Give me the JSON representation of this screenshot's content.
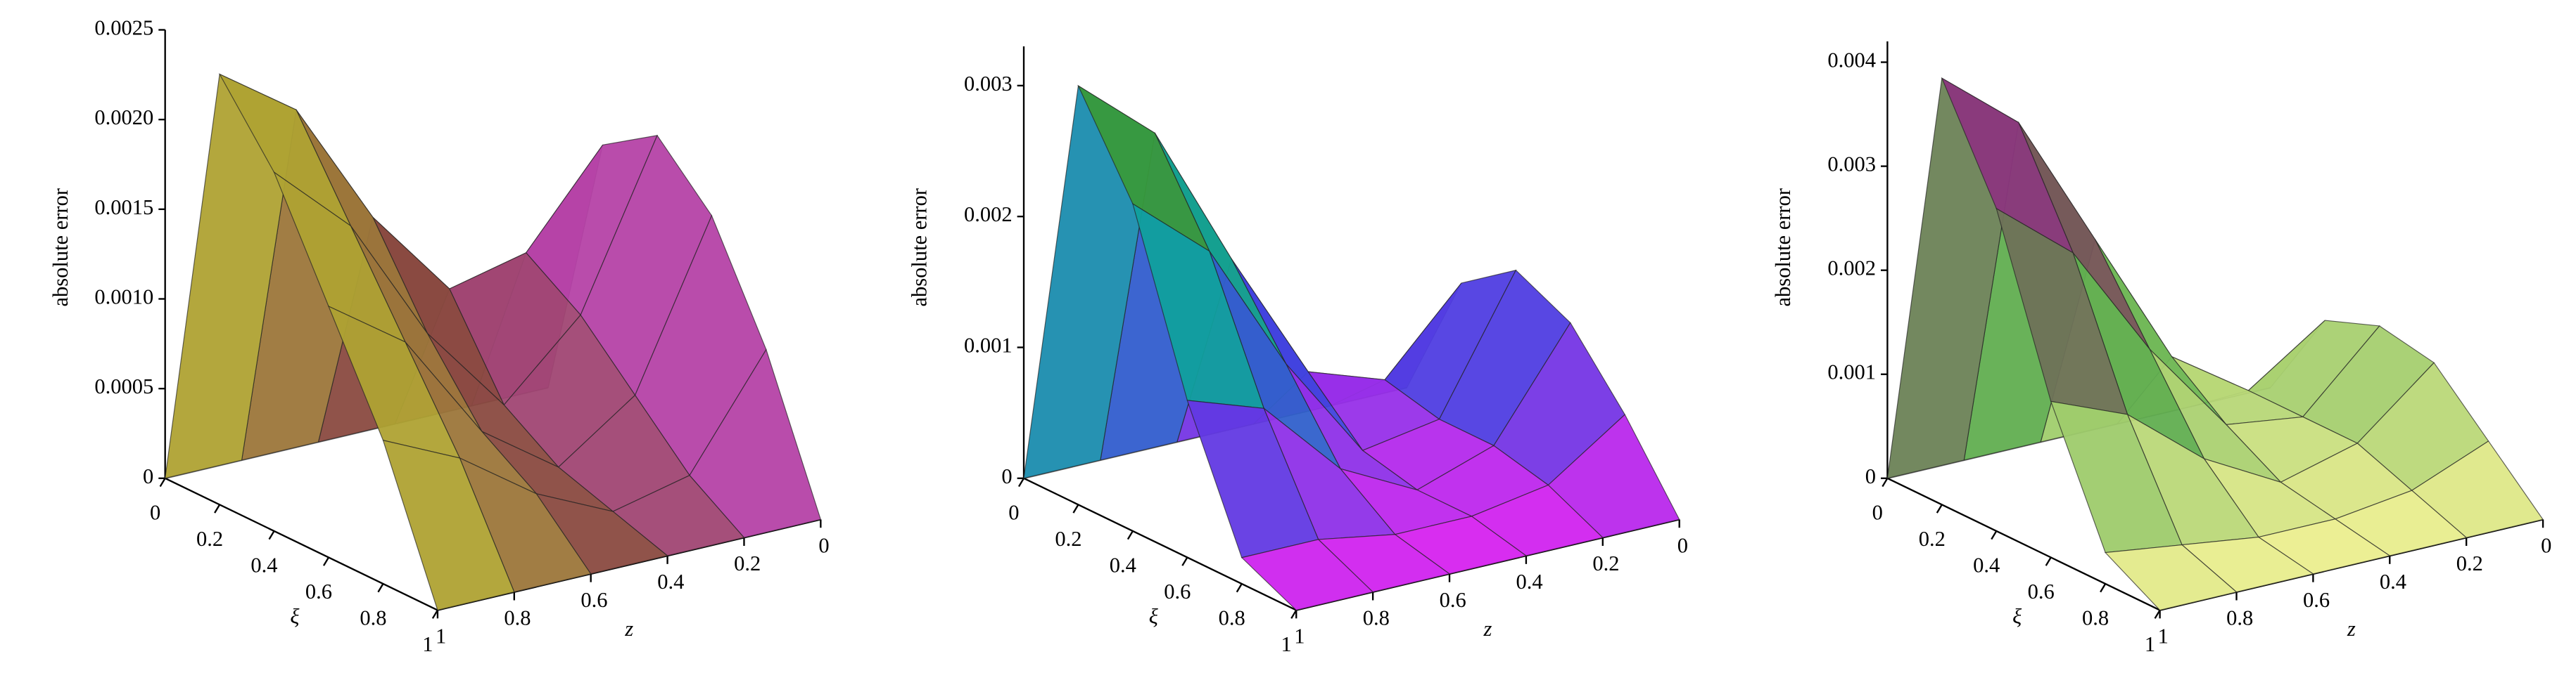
{
  "chart_data": [
    {
      "type": "surface",
      "ylabel": "absolute error",
      "xlabel": "ξ",
      "zlabel": "z",
      "xi": [
        0,
        0.2,
        0.4,
        0.6,
        0.8,
        1
      ],
      "z": [
        0,
        0.2,
        0.4,
        0.6,
        0.8,
        1
      ],
      "values": [
        [
          0,
          0,
          0,
          0,
          0,
          0
        ],
        [
          0.0015,
          0.001,
          0.0009,
          0.0014,
          0.0021,
          0.0024
        ],
        [
          0.0017,
          0.0008,
          0.0004,
          0.0009,
          0.0016,
          0.002
        ],
        [
          0.0014,
          0.0005,
          0.0002,
          0.0005,
          0.0011,
          0.0014
        ],
        [
          0.0008,
          0.0002,
          0.0001,
          0.0003,
          0.0006,
          0.0008
        ],
        [
          0,
          0,
          0,
          0,
          0,
          0
        ]
      ],
      "ylim": [
        0,
        0.0025
      ],
      "yticks": [
        0,
        0.0005,
        {
          "value": 0.001,
          "label": "0.0010"
        },
        0.0015,
        {
          "value": 0.002,
          "label": "0.0020"
        },
        0.0025
      ],
      "xticks": [
        0,
        0.2,
        0.4,
        0.6,
        0.8,
        1
      ],
      "zticks": [
        0,
        0.2,
        0.4,
        0.6,
        0.8,
        1
      ],
      "color_by": "z",
      "colormap": [
        "#c040c0",
        "#8a4a40",
        "#b8b830"
      ]
    },
    {
      "type": "surface",
      "ylabel": "absolute error",
      "xlabel": "ξ",
      "zlabel": "z",
      "xi": [
        0,
        0.2,
        0.4,
        0.6,
        0.8,
        1
      ],
      "z": [
        0,
        0.2,
        0.4,
        0.6,
        0.8,
        1
      ],
      "values": [
        [
          0,
          0,
          0,
          0,
          0,
          0
        ],
        [
          0.001,
          0.0004,
          0.0006,
          0.0016,
          0.0027,
          0.0032
        ],
        [
          0.0013,
          0.0003,
          0.0002,
          0.001,
          0.002,
          0.0025
        ],
        [
          0.0011,
          0.0003,
          0.0001,
          0.0004,
          0.001,
          0.0012
        ],
        [
          0.0006,
          0.0002,
          0.0001,
          0.0001,
          0.0002,
          0.0002
        ],
        [
          0,
          0,
          0,
          0,
          0,
          0
        ]
      ],
      "ylim": [
        0,
        0.0033
      ],
      "yticks": [
        0,
        0.001,
        0.002,
        0.003
      ],
      "xticks": [
        0,
        0.2,
        0.4,
        0.6,
        0.8,
        1
      ],
      "zticks": [
        0,
        0.2,
        0.4,
        0.6,
        0.8,
        1
      ],
      "color_by": "height",
      "colormap": [
        "#e020f0",
        "#4040e0",
        "#10a0a0",
        "#20b040",
        "#c02020"
      ]
    },
    {
      "type": "surface",
      "ylabel": "absolute error",
      "xlabel": "ξ",
      "zlabel": "z",
      "xi": [
        0,
        0.2,
        0.4,
        0.6,
        0.8,
        1
      ],
      "z": [
        0,
        0.2,
        0.4,
        0.6,
        0.8,
        1
      ],
      "values": [
        [
          0,
          0,
          0,
          0,
          0,
          0
        ],
        [
          0.0009,
          0.0004,
          0.0009,
          0.0022,
          0.0035,
          0.0041
        ],
        [
          0.0011,
          0.0004,
          0.0005,
          0.0014,
          0.0025,
          0.0031
        ],
        [
          0.001,
          0.0004,
          0.0002,
          0.0006,
          0.0012,
          0.0015
        ],
        [
          0.0005,
          0.0002,
          0.0001,
          0.0001,
          0.0002,
          0.0003
        ],
        [
          0,
          0,
          0,
          0,
          0,
          0
        ]
      ],
      "ylim": [
        0,
        0.0042
      ],
      "yticks": [
        0,
        0.001,
        0.002,
        0.003,
        0.004
      ],
      "xticks": [
        0,
        0.2,
        0.4,
        0.6,
        0.8,
        1
      ],
      "zticks": [
        0,
        0.2,
        0.4,
        0.6,
        0.8,
        1
      ],
      "color_by": "height",
      "colormap": [
        "#f0f090",
        "#60b050",
        "#803060",
        "#a040b0"
      ]
    }
  ]
}
